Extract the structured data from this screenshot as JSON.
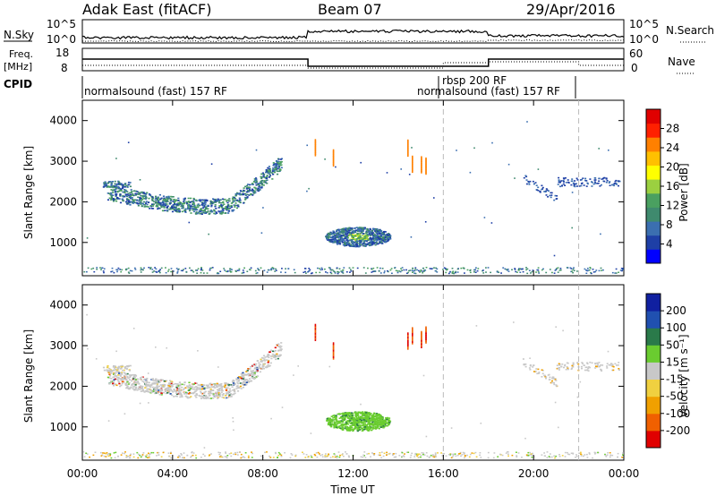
{
  "header": {
    "station": "Adak East (fitACF)",
    "beam": "Beam 07",
    "date": "29/Apr/2016"
  },
  "strip": {
    "nsky_label": "N.Sky",
    "nsky_ticks": [
      "10^5",
      "10^0"
    ],
    "nsearch_label": "N.Search",
    "nsearch_ticks": [
      "10^5",
      "10^0"
    ],
    "freq_label": "Freq.",
    "freq_unit": "[MHz]",
    "freq_ticks": [
      "18",
      "8"
    ],
    "nave_label": "Nave",
    "nave_ticks": [
      "60",
      "0"
    ],
    "cpid_label": "CPID",
    "cpid_segments": [
      {
        "text": "normalsound (fast) 157 RF",
        "start_h": 0
      },
      {
        "text": "rbsp 200 RF",
        "start_h": 16
      },
      {
        "text": "normalsound (fast) 157 RF",
        "start_h": 16
      }
    ]
  },
  "chart_data": [
    {
      "type": "heatmap",
      "name": "power",
      "ylabel": "Slant Range [km]",
      "ylim": [
        180,
        4500
      ],
      "yticks": [
        "4000",
        "3000",
        "2000",
        "1000"
      ],
      "colorbar_label": "Power [dB]",
      "colorbar_ticks": [
        "28",
        "24",
        "20",
        "16",
        "12",
        "8",
        "4"
      ],
      "colors": [
        "#0000ff",
        "#1e3fa6",
        "#3b6fb0",
        "#3f8a6e",
        "#4aa060",
        "#9bd040",
        "#ffff00",
        "#ffc000",
        "#ff8000",
        "#ff2000",
        "#e00000"
      ]
    },
    {
      "type": "heatmap",
      "name": "velocity",
      "ylabel": "Slant Range [km]",
      "ylim": [
        180,
        4500
      ],
      "yticks": [
        "4000",
        "3000",
        "2000",
        "1000"
      ],
      "colorbar_label": "Velocity [m s⁻¹]",
      "colorbar_ticks": [
        "200",
        "100",
        "50",
        "15",
        "-15",
        "-50",
        "-100",
        "-200"
      ],
      "colors": [
        "#1020a0",
        "#2050b0",
        "#2a7a4a",
        "#6acc30",
        "#c8c8c8",
        "#f0d040",
        "#f0a000",
        "#f06000",
        "#e00000"
      ]
    }
  ],
  "xaxis": {
    "label": "Time UT",
    "ticks": [
      "00:00",
      "04:00",
      "08:00",
      "12:00",
      "16:00",
      "20:00",
      "00:00"
    ],
    "range_hours": [
      0,
      24
    ]
  },
  "dashed_markers_h": [
    16,
    22
  ]
}
